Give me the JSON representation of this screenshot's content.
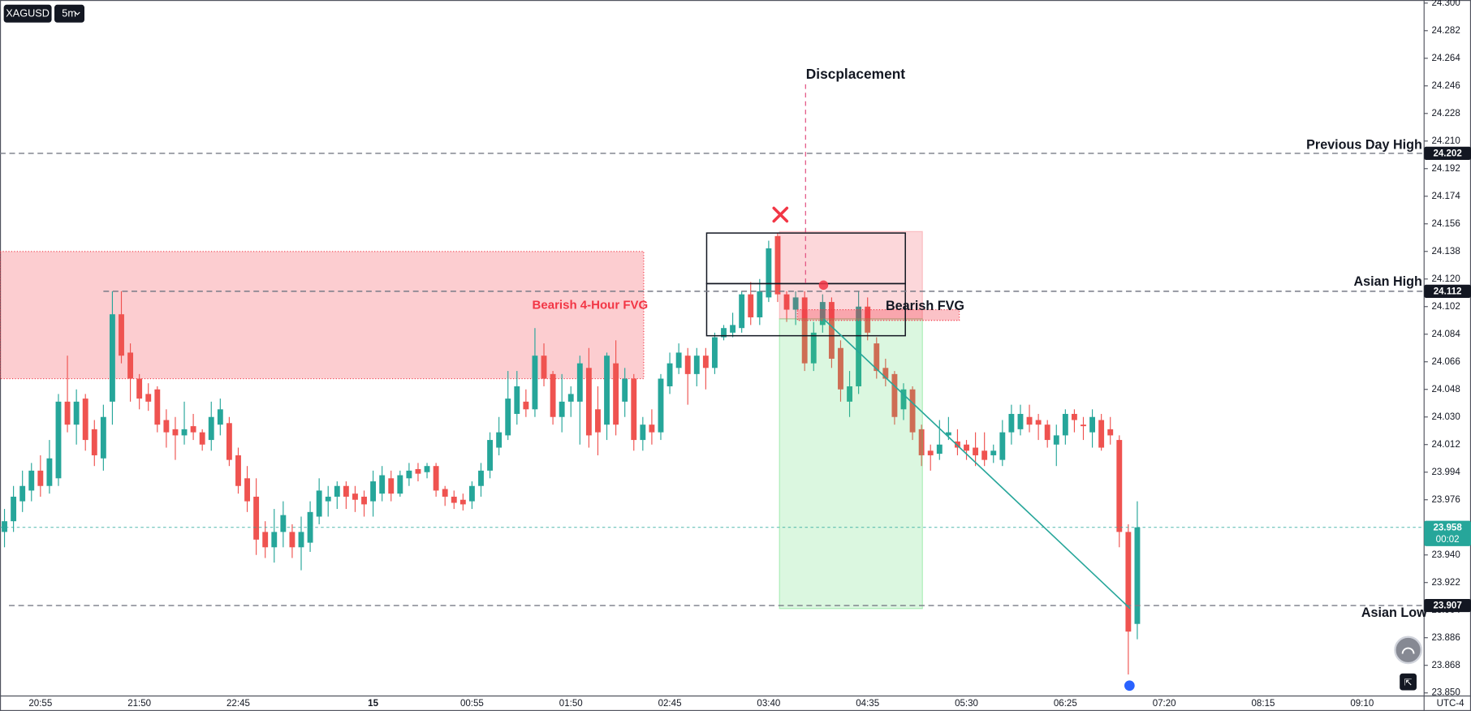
{
  "chart_data": {
    "type": "candlestick",
    "symbol": "XAGUSD",
    "interval": "5m",
    "timezone": "UTC-4",
    "up_color": "#26a69a",
    "down_color": "#ef5350",
    "xlim": [
      -0.5,
      157.9
    ],
    "ylim": [
      23.848,
      24.302
    ],
    "yticks": [
      {
        "value": 23.85,
        "label": "23.850"
      },
      23.868,
      23.886,
      23.904,
      23.922,
      {
        "value": 23.94,
        "label": "23.940"
      },
      23.958,
      23.976,
      23.994,
      24.012,
      {
        "value": 24.03,
        "label": "24.030"
      },
      24.048,
      24.066,
      24.084,
      24.102,
      {
        "value": 24.12,
        "label": "24.120"
      },
      24.138,
      24.156,
      24.174,
      24.192,
      {
        "value": 24.21,
        "label": "24.210"
      },
      24.228,
      24.246,
      24.264,
      24.282,
      {
        "value": 24.3,
        "label": "24.300"
      }
    ],
    "grid": false,
    "categories": [
      null,
      null,
      null,
      null,
      "20:55",
      null,
      null,
      null,
      null,
      null,
      null,
      null,
      null,
      null,
      null,
      "21:50",
      null,
      null,
      null,
      null,
      null,
      null,
      null,
      null,
      null,
      null,
      "22:45",
      null,
      null,
      null,
      null,
      null,
      null,
      null,
      null,
      null,
      null,
      null,
      null,
      null,
      null,
      "15",
      null,
      null,
      null,
      null,
      null,
      null,
      null,
      null,
      null,
      null,
      "00:55",
      null,
      null,
      null,
      null,
      null,
      null,
      null,
      null,
      null,
      null,
      "01:50",
      null,
      null,
      null,
      null,
      null,
      null,
      null,
      null,
      null,
      null,
      "02:45",
      null,
      null,
      null,
      null,
      null,
      null,
      null,
      null,
      null,
      null,
      "03:40",
      null,
      null,
      null,
      null,
      null,
      null,
      null,
      null,
      null,
      null,
      "04:35",
      null,
      null,
      null,
      null,
      null,
      null,
      null,
      null,
      null,
      null,
      "05:30",
      null,
      null,
      null,
      null,
      null,
      null,
      null,
      null,
      null,
      null,
      "06:25",
      null,
      null,
      null,
      null,
      null,
      null,
      null,
      null,
      null,
      null,
      "07:20",
      null,
      null,
      null,
      null,
      null,
      null,
      null,
      null,
      null,
      null,
      "08:15",
      null,
      null,
      null,
      null,
      null,
      null,
      null,
      null,
      null,
      null,
      "09:10"
    ],
    "open": [
      23.955,
      23.962,
      23.975,
      23.982,
      23.995,
      23.985,
      23.99,
      24.04,
      24.025,
      24.042,
      24.022,
      24.003,
      24.04,
      24.097,
      24.072,
      24.055,
      24.045,
      24.048,
      24.028,
      24.022,
      24.018,
      24.024,
      24.02,
      24.015,
      24.025,
      24.026,
      24.005,
      23.99,
      23.978,
      23.955,
      23.945,
      23.955,
      23.955,
      23.945,
      23.948,
      23.965,
      23.975,
      23.978,
      23.985,
      23.98,
      23.978,
      23.975,
      23.98,
      23.99,
      23.98,
      23.99,
      23.996,
      23.994,
      23.998,
      23.983,
      23.978,
      23.976,
      23.975,
      23.985,
      23.995,
      24.01,
      24.018,
      24.032,
      24.04,
      24.035,
      24.07,
      24.058,
      24.03,
      24.04,
      24.04,
      24.062,
      24.035,
      24.025,
      24.065,
      24.04,
      24.055,
      24.015,
      24.025,
      24.02,
      24.05,
      24.062,
      24.07,
      24.058,
      24.07,
      24.062,
      24.082,
      24.085,
      24.088,
      24.11,
      24.095,
      24.108,
      24.148,
      24.11,
      24.1,
      24.108,
      24.065,
      24.09,
      24.105,
      24.075,
      24.04,
      24.05,
      24.102,
      24.078,
      24.062,
      24.058,
      24.035,
      24.048,
      24.022,
      24.008,
      24.006,
      24.018,
      24.014,
      24.012,
      24.01,
      24.008,
      24.005,
      24.002,
      24.02,
      24.022,
      24.03,
      24.028,
      24.025,
      24.012,
      24.018,
      24.032,
      24.025,
      24.02,
      24.028,
      24.022,
      24.015,
      23.955,
      23.895,
      null,
      null,
      null,
      null,
      null,
      null,
      null,
      null,
      null,
      null,
      null,
      null,
      null,
      null,
      null,
      null,
      null,
      null,
      null,
      null,
      null,
      null,
      null,
      null,
      null
    ],
    "high": [
      23.97,
      23.985,
      23.995,
      24.0,
      24.005,
      24.015,
      24.045,
      24.07,
      24.048,
      24.045,
      24.028,
      24.038,
      24.112,
      24.112,
      24.078,
      24.058,
      24.052,
      24.05,
      24.035,
      24.03,
      24.04,
      24.032,
      24.022,
      24.04,
      24.042,
      24.03,
      24.01,
      23.998,
      23.99,
      23.962,
      23.97,
      23.975,
      23.96,
      23.965,
      23.975,
      23.99,
      23.985,
      23.988,
      23.988,
      23.985,
      23.982,
      23.995,
      23.998,
      23.995,
      23.995,
      24.0,
      24.0,
      24.0,
      24.0,
      23.985,
      23.982,
      23.98,
      23.988,
      24.0,
      24.02,
      24.03,
      24.06,
      24.06,
      24.048,
      24.088,
      24.078,
      24.06,
      24.058,
      24.05,
      24.07,
      24.075,
      24.05,
      24.072,
      24.08,
      24.062,
      24.058,
      24.03,
      24.035,
      24.058,
      24.072,
      24.078,
      24.075,
      24.075,
      24.075,
      24.085,
      24.09,
      24.098,
      24.112,
      24.118,
      24.12,
      24.145,
      24.15,
      24.112,
      24.112,
      24.112,
      24.092,
      24.11,
      24.108,
      24.08,
      24.06,
      24.112,
      24.108,
      24.082,
      24.068,
      24.06,
      24.052,
      24.05,
      24.025,
      24.012,
      24.028,
      24.03,
      24.022,
      24.015,
      24.02,
      24.02,
      24.012,
      24.028,
      24.038,
      24.038,
      24.038,
      24.032,
      24.028,
      24.025,
      24.035,
      24.035,
      24.03,
      24.035,
      24.032,
      24.03,
      24.018,
      23.96,
      23.975,
      null,
      null,
      null,
      null,
      null,
      null,
      null,
      null,
      null,
      null,
      null,
      null,
      null,
      null,
      null,
      null,
      null,
      null,
      null,
      null,
      null,
      null,
      null,
      null,
      null
    ],
    "low": [
      23.945,
      23.955,
      23.968,
      23.975,
      23.978,
      23.98,
      23.985,
      24.02,
      24.012,
      24.008,
      23.998,
      23.995,
      24.025,
      24.065,
      24.04,
      24.035,
      24.034,
      24.02,
      24.01,
      24.002,
      24.012,
      24.015,
      24.008,
      24.008,
      24.018,
      23.998,
      23.98,
      23.968,
      23.94,
      23.938,
      23.935,
      23.945,
      23.938,
      23.93,
      23.942,
      23.96,
      23.965,
      23.97,
      23.97,
      23.968,
      23.965,
      23.965,
      23.975,
      23.975,
      23.978,
      23.985,
      23.988,
      23.99,
      23.978,
      23.972,
      23.97,
      23.969,
      23.97,
      23.978,
      23.99,
      24.005,
      24.015,
      24.025,
      24.03,
      24.03,
      24.05,
      24.025,
      24.02,
      24.03,
      24.012,
      24.01,
      24.005,
      24.015,
      24.018,
      24.03,
      24.008,
      24.008,
      24.012,
      24.015,
      24.045,
      24.058,
      24.038,
      24.05,
      24.048,
      24.058,
      24.08,
      24.082,
      24.085,
      24.09,
      24.09,
      24.105,
      24.105,
      24.092,
      24.09,
      24.06,
      24.06,
      24.085,
      24.062,
      24.04,
      24.03,
      24.045,
      24.08,
      24.055,
      24.05,
      24.025,
      24.028,
      24.015,
      23.998,
      23.995,
      24.002,
      24.015,
      24.005,
      24.002,
      23.998,
      23.998,
      24.0,
      23.998,
      24.012,
      24.018,
      24.02,
      24.015,
      24.01,
      23.998,
      24.012,
      24.02,
      24.015,
      24.01,
      24.008,
      24.012,
      23.945,
      23.862,
      23.885,
      null,
      null,
      null,
      null,
      null,
      null,
      null,
      null,
      null,
      null,
      null,
      null,
      null,
      null,
      null,
      null,
      null,
      null,
      null,
      null,
      null,
      null,
      null,
      null,
      null
    ],
    "close": [
      23.962,
      23.978,
      23.985,
      23.995,
      23.985,
      24.003,
      24.04,
      24.025,
      24.04,
      24.015,
      24.005,
      24.03,
      24.097,
      24.07,
      24.055,
      24.042,
      24.04,
      24.025,
      24.02,
      24.018,
      24.022,
      24.02,
      24.012,
      24.03,
      24.035,
      24.002,
      23.985,
      23.975,
      23.95,
      23.945,
      23.955,
      23.966,
      23.945,
      23.955,
      23.968,
      23.982,
      23.978,
      23.985,
      23.978,
      23.976,
      23.973,
      23.988,
      23.992,
      23.98,
      23.992,
      23.995,
      23.993,
      23.998,
      23.982,
      23.978,
      23.974,
      23.973,
      23.985,
      23.995,
      24.015,
      24.02,
      24.042,
      24.05,
      24.035,
      24.07,
      24.055,
      24.03,
      24.04,
      24.045,
      24.065,
      24.018,
      24.02,
      24.07,
      24.025,
      24.055,
      24.015,
      24.025,
      24.02,
      24.055,
      24.065,
      24.072,
      24.058,
      24.07,
      24.062,
      24.082,
      24.088,
      24.09,
      24.11,
      24.095,
      24.112,
      24.14,
      24.11,
      24.1,
      24.108,
      24.065,
      24.085,
      24.105,
      24.068,
      24.048,
      24.05,
      24.102,
      24.085,
      24.06,
      24.055,
      24.03,
      24.048,
      24.02,
      24.005,
      24.005,
      24.012,
      24.02,
      24.01,
      24.008,
      24.005,
      24.002,
      24.008,
      24.02,
      24.032,
      24.032,
      24.025,
      24.025,
      24.015,
      24.018,
      24.032,
      24.028,
      24.024,
      24.03,
      24.01,
      24.018,
      23.955,
      23.89,
      23.958,
      null,
      null,
      null,
      null,
      null,
      null,
      null,
      null,
      null,
      null,
      null,
      null,
      null,
      null,
      null,
      null,
      null,
      null,
      null,
      null,
      null,
      null,
      null,
      null,
      null
    ],
    "levels": [
      {
        "name": "Previous Day High",
        "value": 24.202
      },
      {
        "name": "Asian High",
        "value": 24.112,
        "start": 11
      },
      {
        "name": "Asian Low",
        "value": 23.907,
        "start": 0.5
      }
    ],
    "current_price": {
      "value": 23.958,
      "countdown": "00:02",
      "color": "#26a69a"
    },
    "zones": [
      {
        "label": "Bearish 4-Hour FVG",
        "top": 24.138,
        "bottom": 24.055,
        "start": -0.5,
        "end": 71.1,
        "color": "#f23645"
      },
      {
        "label": "Bearish FVG",
        "top": 24.1,
        "bottom": 24.093,
        "start": 88.2,
        "end": 106.2,
        "color": "#f23645"
      }
    ],
    "boxes": [
      {
        "top": 24.15,
        "bottom": 24.117,
        "start": 78.1,
        "end": 100.2
      },
      {
        "top": 24.117,
        "bottom": 24.083,
        "start": 78.1,
        "end": 100.2
      }
    ],
    "position": {
      "stop": 24.151,
      "entry": 24.094,
      "target": 23.905,
      "start": 86.2,
      "end": 102.1
    },
    "trend_line": {
      "x": [
        91.1,
        125.2
      ],
      "y": [
        24.094,
        23.905
      ],
      "color": "#26a69a"
    },
    "displacement": {
      "label": "Discplacement",
      "x": 89.1,
      "top": 24.247,
      "bottom": 24.117,
      "color": "#e0487a"
    },
    "markers": [
      {
        "shape": "cross",
        "x": 86.3,
        "y": 24.162,
        "color": "#f23645"
      },
      {
        "shape": "circle",
        "x": 91.1,
        "y": 24.116,
        "color": "#f23645"
      }
    ]
  }
}
